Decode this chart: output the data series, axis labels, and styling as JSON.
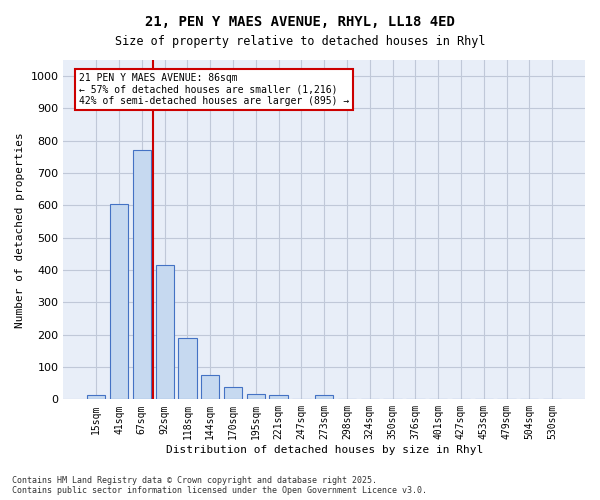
{
  "title_line1": "21, PEN Y MAES AVENUE, RHYL, LL18 4ED",
  "title_line2": "Size of property relative to detached houses in Rhyl",
  "xlabel": "Distribution of detached houses by size in Rhyl",
  "ylabel": "Number of detached properties",
  "categories": [
    "15sqm",
    "41sqm",
    "67sqm",
    "92sqm",
    "118sqm",
    "144sqm",
    "170sqm",
    "195sqm",
    "221sqm",
    "247sqm",
    "273sqm",
    "298sqm",
    "324sqm",
    "350sqm",
    "376sqm",
    "401sqm",
    "427sqm",
    "453sqm",
    "479sqm",
    "504sqm",
    "530sqm"
  ],
  "values": [
    12,
    605,
    770,
    415,
    190,
    75,
    37,
    17,
    12,
    0,
    12,
    0,
    0,
    0,
    0,
    0,
    0,
    0,
    0,
    0,
    0
  ],
  "bar_color": "#c6d9f0",
  "bar_edge_color": "#4472c4",
  "bar_width": 0.8,
  "vline_x": 2.5,
  "vline_color": "#cc0000",
  "annotation_text": "21 PEN Y MAES AVENUE: 86sqm\n← 57% of detached houses are smaller (1,216)\n42% of semi-detached houses are larger (895) →",
  "annotation_box_color": "#cc0000",
  "ylim": [
    0,
    1050
  ],
  "yticks": [
    0,
    100,
    200,
    300,
    400,
    500,
    600,
    700,
    800,
    900,
    1000
  ],
  "grid_color": "#c0c8d8",
  "background_color": "#e8eef8",
  "footnote": "Contains HM Land Registry data © Crown copyright and database right 2025.\nContains public sector information licensed under the Open Government Licence v3.0."
}
